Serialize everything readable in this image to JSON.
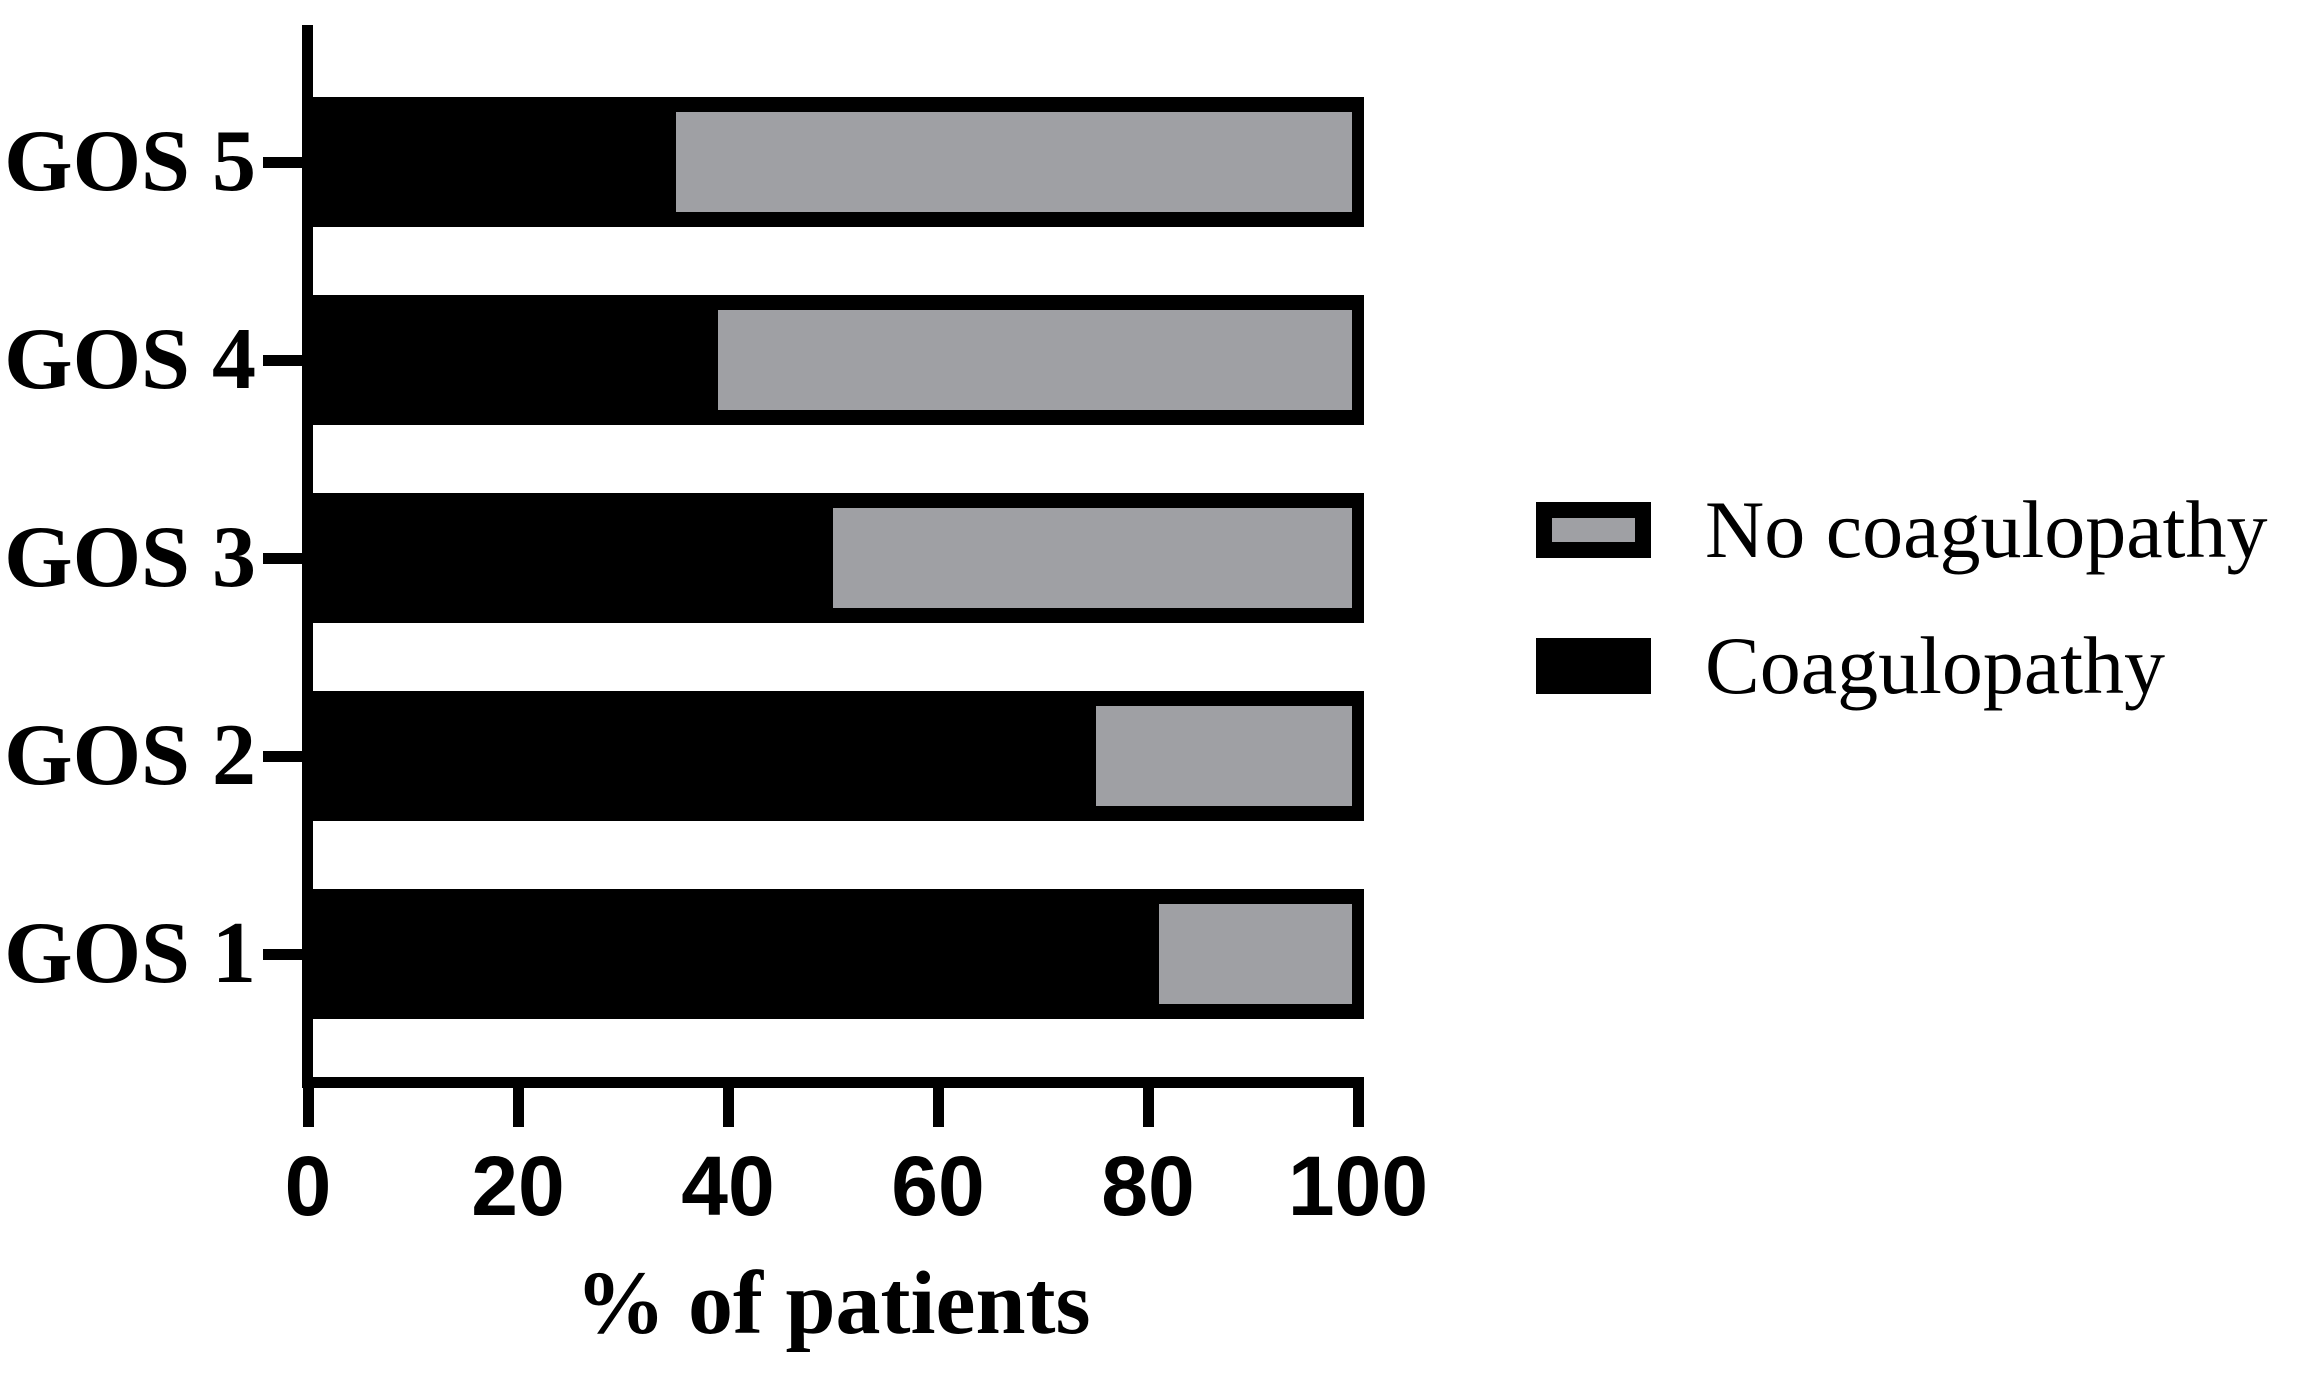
{
  "chart_data": {
    "type": "bar",
    "orientation": "horizontal",
    "stacked": true,
    "title": "",
    "categories": [
      "GOS 5",
      "GOS 4",
      "GOS 3",
      "GOS 2",
      "GOS 1"
    ],
    "series": [
      {
        "name": "Coagulopathy",
        "color": "#000000",
        "values": [
          35,
          39,
          50,
          75,
          81
        ]
      },
      {
        "name": "No coagulopathy",
        "color": "#9fa0a4",
        "values": [
          65,
          61,
          50,
          25,
          19
        ]
      }
    ],
    "xlabel": "% of patients",
    "ylabel": "",
    "xlim": [
      0,
      100
    ],
    "x_ticks": [
      0,
      20,
      40,
      60,
      80,
      100
    ],
    "x_tick_labels": [
      "0",
      "20",
      "40",
      "60",
      "80",
      "100"
    ],
    "grid": false,
    "legend": {
      "position": "right",
      "entries": [
        {
          "label": "No coagulopathy",
          "color": "#9fa0a4"
        },
        {
          "label": "Coagulopathy",
          "color": "#000000"
        }
      ]
    }
  },
  "colors": {
    "bar_black": "#000000",
    "bar_gray": "#9fa0a4",
    "background": "#ffffff"
  }
}
